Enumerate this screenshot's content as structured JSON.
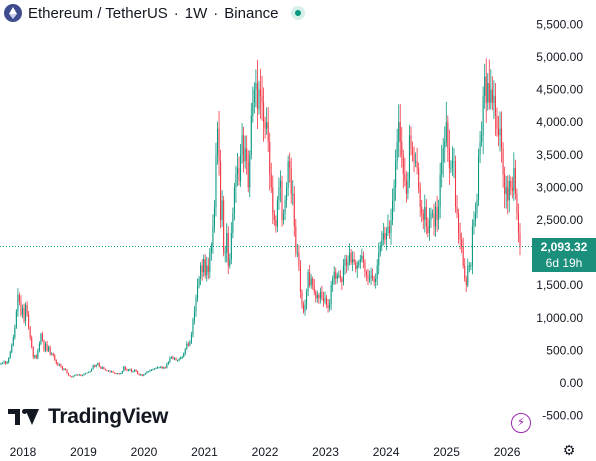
{
  "header": {
    "symbol": "Ethereum / TetherUS",
    "separator": "·",
    "interval": "1W",
    "exchange": "Binance"
  },
  "price_label": {
    "price": "2,093.32",
    "countdown": "6d 19h"
  },
  "branding": {
    "logo_text": "TradingView"
  },
  "colors": {
    "up": "#089981",
    "down": "#f23645",
    "price_line": "#089981",
    "price_label_bg": "#1a8f7c",
    "accent_bolt": "#9c27b0"
  },
  "icons": [
    "ethereum-logo-icon",
    "market-status-icon",
    "bolt-icon",
    "settings-icon"
  ],
  "chart_data": {
    "type": "candlestick",
    "interval": "1W",
    "ylim": [
      -500,
      5500
    ],
    "y_ticks": [
      "5,500.00",
      "5,000.00",
      "4,500.00",
      "4,000.00",
      "3,500.00",
      "3,000.00",
      "2,500.00",
      "1,500.00",
      "1,000.00",
      "500.00",
      "0.00",
      "-500.00"
    ],
    "y_tick_values": [
      5500,
      5000,
      4500,
      4000,
      3500,
      3000,
      2500,
      1500,
      1000,
      500,
      0,
      -500
    ],
    "x_ticks": [
      "2018",
      "2019",
      "2020",
      "2021",
      "2022",
      "2023",
      "2024",
      "2025",
      "2026"
    ],
    "x_tick_years": [
      2018,
      2019,
      2020,
      2021,
      2022,
      2023,
      2024,
      2025,
      2026
    ],
    "x_range_years": [
      2017.62,
      2026.28
    ],
    "last_price": 2093.32,
    "closes": [
      300,
      310,
      330,
      300,
      320,
      380,
      470,
      580,
      700,
      850,
      1100,
      1350,
      1250,
      1050,
      1150,
      950,
      1200,
      1050,
      850,
      700,
      550,
      400,
      420,
      380,
      500,
      600,
      750,
      650,
      500,
      600,
      500,
      550,
      450,
      450,
      420,
      350,
      300,
      280,
      280,
      250,
      200,
      220,
      200,
      150,
      120,
      100,
      90,
      110,
      120,
      130,
      120,
      130,
      110,
      120,
      140,
      150,
      160,
      170,
      180,
      210,
      270,
      250,
      280,
      300,
      250,
      220,
      240,
      210,
      200,
      190,
      190,
      170,
      180,
      160,
      150,
      140,
      150,
      140,
      150,
      180,
      250,
      210,
      190,
      200,
      210,
      170,
      180,
      200,
      180,
      140,
      120,
      130,
      110,
      130,
      150,
      170,
      180,
      200,
      200,
      210,
      220,
      230,
      240,
      240,
      250,
      230,
      240,
      230,
      290,
      320,
      380,
      400,
      370,
      380,
      350,
      350,
      370,
      380,
      400,
      450,
      520,
      600,
      580,
      630,
      740,
      970,
      1100,
      1300,
      1500,
      1600,
      1800,
      1700,
      1900,
      1650,
      1800,
      1700,
      2000,
      2100,
      2400,
      2700,
      3500,
      3900,
      3400,
      2500,
      2800,
      2000,
      2000,
      2300,
      1800,
      1900,
      2300,
      2600,
      3000,
      3200,
      3300,
      3100,
      3500,
      3800,
      3400,
      3600,
      3400,
      3000,
      3500,
      4100,
      4300,
      4500,
      4600,
      4200,
      4500,
      4400,
      4300,
      4000,
      3900,
      4000,
      3700,
      3200,
      3000,
      2600,
      2500,
      2400,
      2800,
      3000,
      3100,
      2500,
      2600,
      2800,
      3000,
      3400,
      3300,
      2900,
      2900,
      2400,
      2000,
      2000,
      1800,
      1400,
      1200,
      1100,
      1200,
      1400,
      1700,
      1500,
      1600,
      1500,
      1400,
      1300,
      1350,
      1300,
      1400,
      1300,
      1250,
      1300,
      1200,
      1150,
      1200,
      1500,
      1600,
      1700,
      1600,
      1650,
      1650,
      1600,
      1550,
      1800,
      1900,
      1800,
      1850,
      2000,
      1850,
      1900,
      1850,
      1750,
      1800,
      1850,
      1900,
      1950,
      1850,
      1700,
      1650,
      1600,
      1600,
      1650,
      1600,
      1550,
      1600,
      1800,
      2000,
      2100,
      2200,
      2300,
      2200,
      2300,
      2400,
      2300,
      2500,
      2800,
      3000,
      3400,
      3700,
      4000,
      3700,
      3500,
      3200,
      3100,
      2900,
      3100,
      3800,
      3600,
      3500,
      3400,
      3400,
      3300,
      3000,
      2700,
      2600,
      2500,
      2700,
      2400,
      2300,
      2500,
      2600,
      2600,
      2400,
      2700,
      2500,
      2700,
      3200,
      3400,
      3600,
      3700,
      4000,
      3600,
      3300,
      3300,
      3400,
      3400,
      2700,
      2600,
      2300,
      2200,
      2100,
      1800,
      1600,
      1500,
      1800,
      1800,
      1800,
      2400,
      2500,
      2600,
      2800,
      3500,
      3700,
      3800,
      4400,
      4700,
      4300,
      4600,
      4300,
      4500,
      4300,
      4400,
      4100,
      3900,
      3800,
      3900,
      3600,
      3200,
      2900,
      3000,
      2800,
      3100,
      3000,
      2950,
      3300,
      2900,
      2600,
      2300,
      2093.32
    ]
  }
}
